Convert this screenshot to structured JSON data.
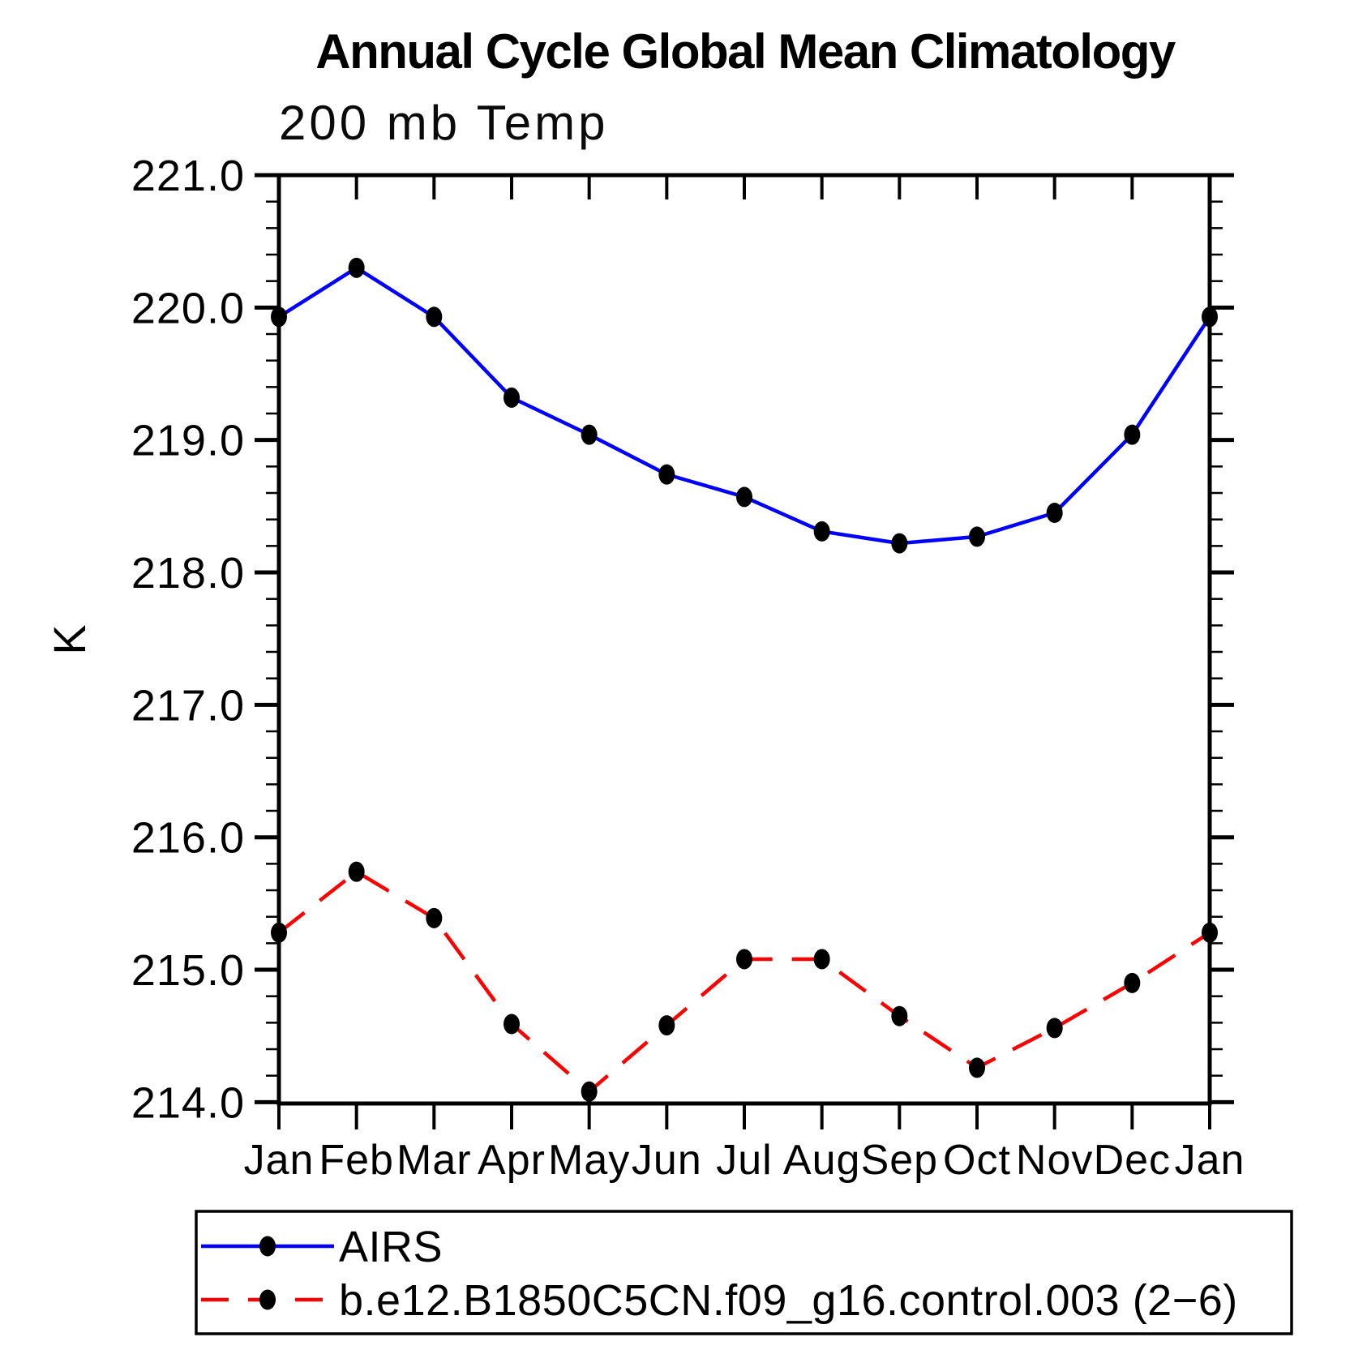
{
  "page": {
    "background": "#ffffff"
  },
  "chart_data": {
    "type": "line",
    "title": "Annual Cycle Global Mean Climatology",
    "subtitle": "200 mb Temp",
    "ylabel": "K",
    "categories": [
      "Jan",
      "Feb",
      "Mar",
      "Apr",
      "May",
      "Jun",
      "Jul",
      "Aug",
      "Sep",
      "Oct",
      "Nov",
      "Dec",
      "Jan"
    ],
    "ylim": [
      213.99,
      221.0
    ],
    "yticks_major": [
      214.0,
      215.0,
      216.0,
      217.0,
      218.0,
      219.0,
      220.0,
      221.0
    ],
    "ytick_labels": [
      "214.0",
      "215.0",
      "216.0",
      "217.0",
      "218.0",
      "219.0",
      "220.0",
      "221.0"
    ],
    "ytick_minor_step": 0.2,
    "grid": false,
    "frame_color": "#000000",
    "legend_position": "bottom-left-box",
    "series": [
      {
        "name": "AIRS",
        "color": "#0000ff",
        "line_style": "solid",
        "marker": "filled-circle",
        "marker_color": "#000000",
        "values": [
          219.93,
          220.3,
          219.93,
          219.32,
          219.04,
          218.74,
          218.57,
          218.31,
          218.22,
          218.27,
          218.45,
          219.04,
          219.93
        ]
      },
      {
        "name": "b.e12.B1850C5CN.f09_g16.control.003 (2−6)",
        "color": "#ff0000",
        "line_style": "dashed",
        "marker": "filled-circle",
        "marker_color": "#000000",
        "values": [
          215.28,
          215.74,
          215.39,
          214.59,
          214.08,
          214.58,
          215.08,
          215.08,
          214.65,
          214.26,
          214.56,
          214.9,
          215.28
        ]
      }
    ]
  }
}
